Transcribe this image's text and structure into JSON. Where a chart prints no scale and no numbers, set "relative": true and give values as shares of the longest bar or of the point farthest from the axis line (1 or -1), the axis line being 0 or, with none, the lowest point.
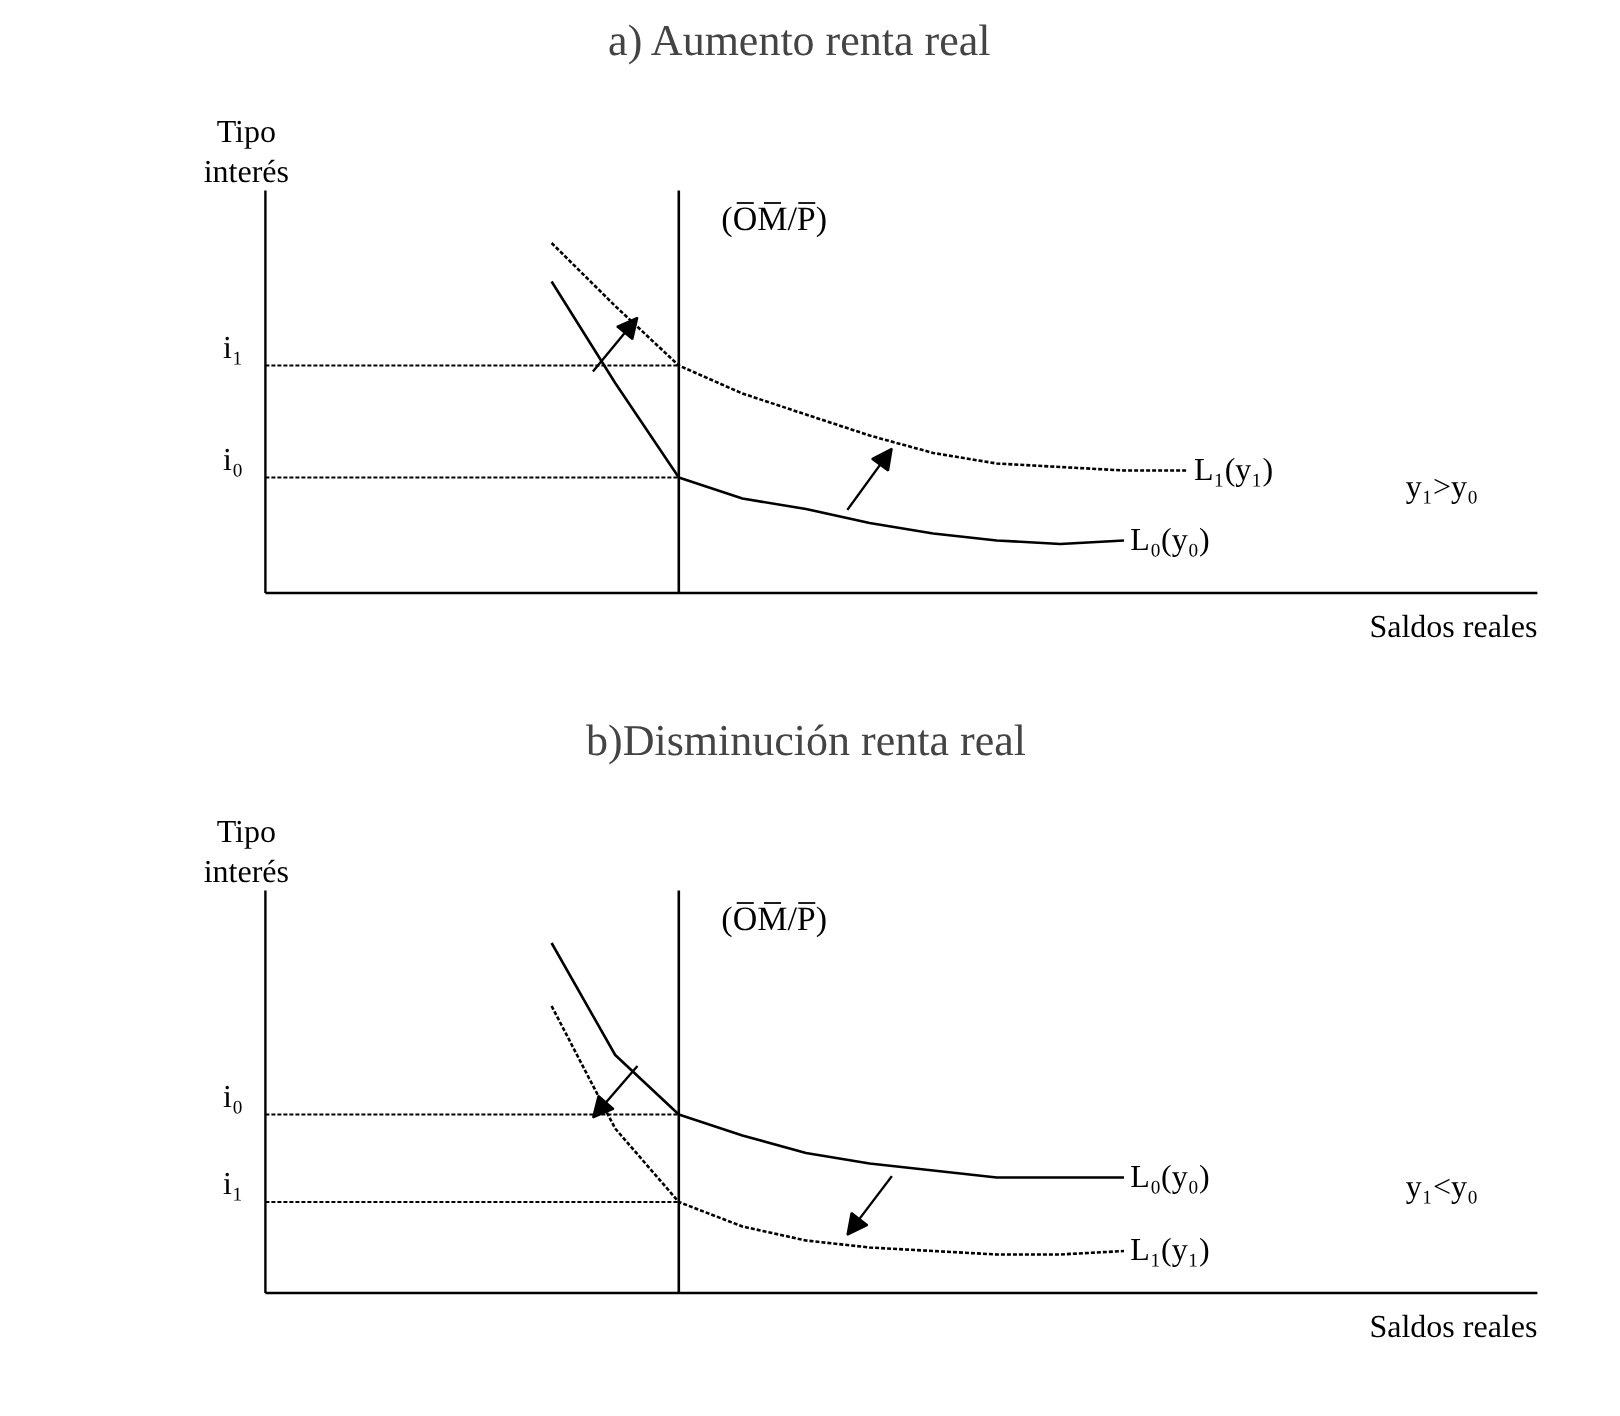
{
  "chart_data": [
    {
      "type": "line",
      "title": "a)  Aumento renta real",
      "xlabel": "Saldos reales",
      "ylabel": "Tipo interés",
      "relative": true,
      "categories": [
        null,
        null,
        null,
        null,
        null,
        null,
        null,
        null,
        null,
        null,
        null,
        null,
        null,
        null,
        null,
        null,
        null,
        null,
        null,
        null
      ],
      "series": [
        {
          "name": "L₀(y₀)",
          "color": "#000000",
          "line_style": "solid",
          "values": [
            null,
            null,
            null,
            null,
            0.89,
            0.6,
            0.33,
            0.27,
            0.24,
            0.2,
            0.17,
            0.15,
            0.14,
            0.15,
            null,
            null,
            null,
            null,
            null,
            null
          ]
        },
        {
          "name": "L₁(y₁)",
          "color": "#000000",
          "line_style": "dotted",
          "values": [
            null,
            null,
            null,
            null,
            1,
            0.82,
            0.65,
            0.57,
            0.51,
            0.45,
            0.4,
            0.37,
            0.36,
            0.35,
            0.35,
            null,
            null,
            null,
            null,
            null
          ]
        }
      ],
      "ref_lines": [
        {
          "axis": "y",
          "value": 0.65,
          "label": "i₁",
          "line_style": "dotted"
        },
        {
          "axis": "y",
          "value": 0.33,
          "label": "i₀",
          "line_style": "dotted"
        }
      ],
      "annotations": [
        "(O̅M̅/P̅)",
        "y₁>y₀"
      ]
    },
    {
      "type": "line",
      "title": "b)Disminución renta real",
      "xlabel": "Saldos reales",
      "ylabel": "Tipo interés",
      "relative": true,
      "categories": [
        null,
        null,
        null,
        null,
        null,
        null,
        null,
        null,
        null,
        null,
        null,
        null,
        null,
        null,
        null,
        null,
        null,
        null,
        null,
        null
      ],
      "series": [
        {
          "name": "L₀(y₀)",
          "color": "#000000",
          "line_style": "solid",
          "values": [
            null,
            null,
            null,
            null,
            1,
            0.68,
            0.51,
            0.45,
            0.4,
            0.37,
            0.35,
            0.33,
            0.33,
            0.33,
            null,
            null,
            null,
            null,
            null,
            null
          ]
        },
        {
          "name": "L₁(y₁)",
          "color": "#000000",
          "line_style": "dotted",
          "values": [
            null,
            null,
            null,
            null,
            0.82,
            0.47,
            0.26,
            0.19,
            0.15,
            0.13,
            0.12,
            0.11,
            0.11,
            0.12,
            null,
            null,
            null,
            null,
            null,
            null
          ]
        }
      ],
      "ref_lines": [
        {
          "axis": "y",
          "value": 0.51,
          "label": "i₀",
          "line_style": "dotted"
        },
        {
          "axis": "y",
          "value": 0.26,
          "label": "i₁",
          "line_style": "dotted"
        }
      ],
      "annotations": [
        "(O̅M̅/P̅)",
        "y₁<y₀"
      ]
    }
  ]
}
